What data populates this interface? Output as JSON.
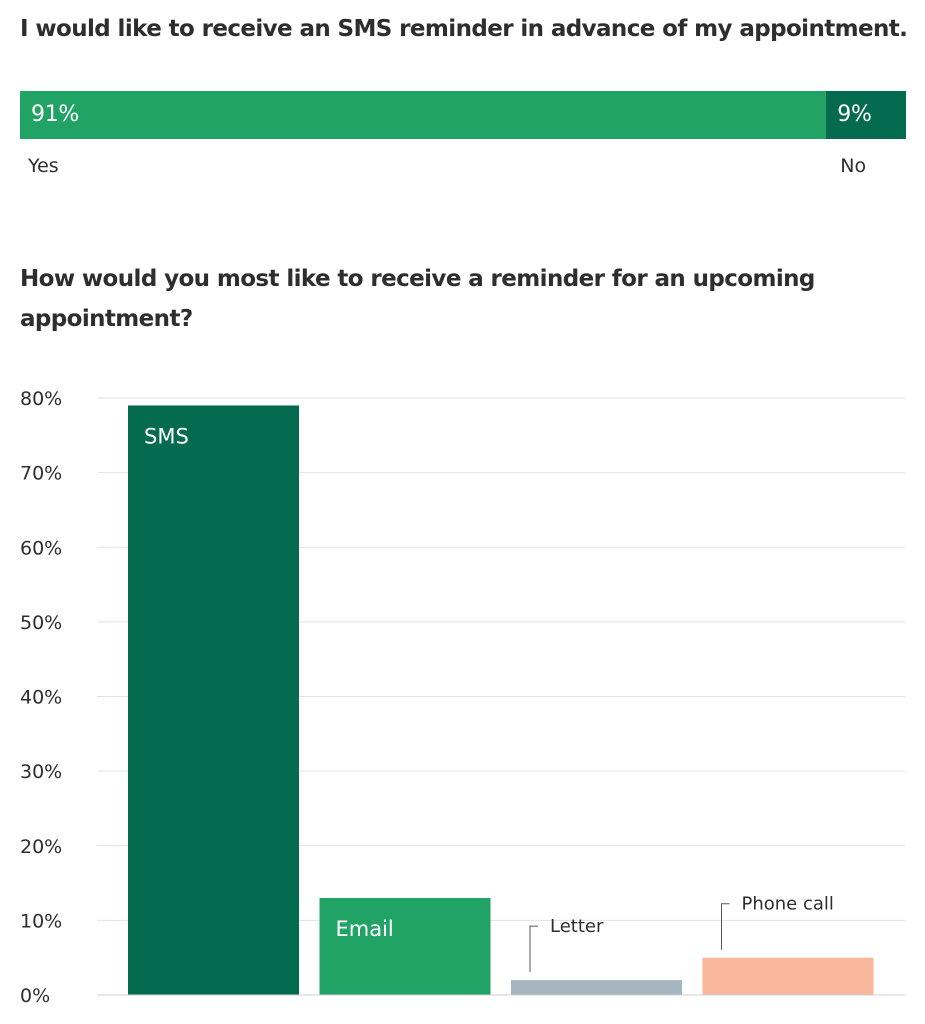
{
  "q1": {
    "title": "I would like to receive an SMS reminder in advance of my appointment.",
    "segments": [
      {
        "label": "Yes",
        "value": 91,
        "value_label": "91%",
        "color": "#21a366"
      },
      {
        "label": "No",
        "value": 9,
        "value_label": "9%",
        "color": "#046b51"
      }
    ]
  },
  "q2": {
    "title": "How would you most like to receive a reminder for an upcoming appointment?"
  },
  "chart_data": {
    "type": "bar",
    "title": "How would you most like to receive a reminder for an upcoming appointment?",
    "categories": [
      "SMS",
      "Email",
      "Letter",
      "Phone call"
    ],
    "values": [
      79,
      13,
      2,
      5
    ],
    "colors": [
      "#046b51",
      "#21a366",
      "#a5b6bf",
      "#f9b79e"
    ],
    "label_placement": [
      "inside",
      "inside",
      "callout",
      "callout"
    ],
    "y_ticks": [
      "0%",
      "10%",
      "20%",
      "30%",
      "40%",
      "50%",
      "60%",
      "70%",
      "80%"
    ],
    "ylim": [
      0,
      80
    ],
    "grid": true,
    "xlabel": "",
    "ylabel": ""
  }
}
